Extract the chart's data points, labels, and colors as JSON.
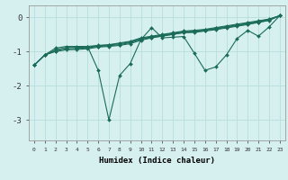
{
  "xlabel": "Humidex (Indice chaleur)",
  "background_color": "#d6f0f0",
  "grid_color": "#b8dede",
  "line_color": "#1a6b5a",
  "xlim": [
    -0.5,
    23.5
  ],
  "ylim": [
    -3.6,
    0.35
  ],
  "xticks": [
    0,
    1,
    2,
    3,
    4,
    5,
    6,
    7,
    8,
    9,
    10,
    11,
    12,
    13,
    14,
    15,
    16,
    17,
    18,
    19,
    20,
    21,
    22,
    23
  ],
  "yticks": [
    0,
    -1,
    -2,
    -3
  ],
  "series": [
    [
      -1.4,
      -1.1,
      -0.9,
      -0.85,
      -0.85,
      -0.85,
      -0.82,
      -0.8,
      -0.75,
      -0.7,
      -0.6,
      -0.55,
      -0.5,
      -0.45,
      -0.4,
      -0.38,
      -0.35,
      -0.3,
      -0.25,
      -0.2,
      -0.15,
      -0.1,
      -0.05,
      0.05
    ],
    [
      -1.4,
      -1.1,
      -0.95,
      -0.88,
      -0.88,
      -0.87,
      -0.83,
      -0.81,
      -0.77,
      -0.72,
      -0.62,
      -0.57,
      -0.52,
      -0.47,
      -0.42,
      -0.4,
      -0.37,
      -0.32,
      -0.27,
      -0.22,
      -0.17,
      -0.12,
      -0.06,
      0.05
    ],
    [
      -1.4,
      -1.1,
      -0.98,
      -0.92,
      -0.91,
      -0.89,
      -0.85,
      -0.83,
      -0.8,
      -0.74,
      -0.64,
      -0.59,
      -0.54,
      -0.49,
      -0.44,
      -0.42,
      -0.38,
      -0.34,
      -0.29,
      -0.24,
      -0.19,
      -0.14,
      -0.08,
      0.05
    ],
    [
      -1.4,
      -1.1,
      -1.0,
      -0.95,
      -0.94,
      -0.92,
      -0.87,
      -0.85,
      -0.82,
      -0.77,
      -0.67,
      -0.6,
      -0.55,
      -0.5,
      -0.45,
      -0.44,
      -0.4,
      -0.36,
      -0.31,
      -0.26,
      -0.21,
      -0.15,
      -0.09,
      0.05
    ],
    [
      null,
      null,
      null,
      null,
      -0.9,
      -0.85,
      -1.55,
      -3.0,
      -1.7,
      -1.35,
      -0.65,
      -0.3,
      -0.6,
      -0.58,
      -0.56,
      -1.05,
      -1.55,
      -1.45,
      -1.1,
      -0.62,
      -0.38,
      -0.55,
      -0.28,
      0.05
    ]
  ]
}
